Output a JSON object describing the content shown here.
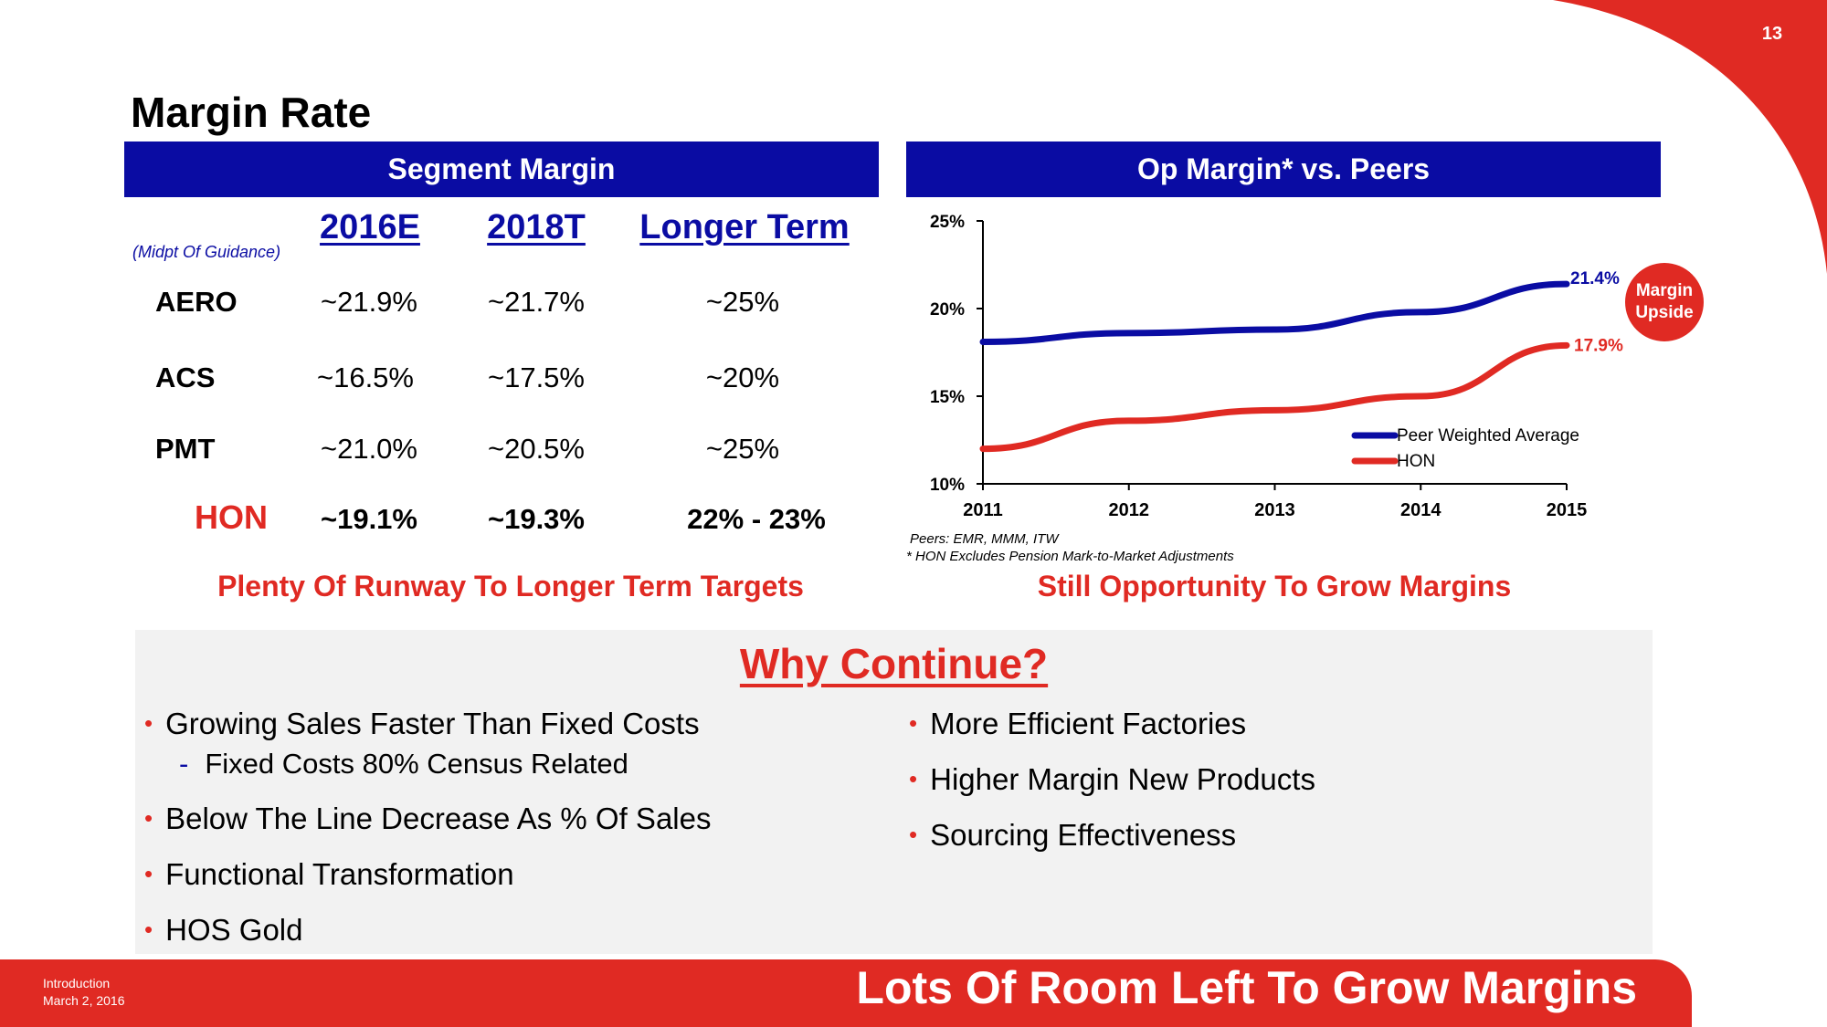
{
  "slide_number": "13",
  "title": "Margin Rate",
  "segment": {
    "header": "Segment Margin",
    "note": "(Midpt Of Guidance)",
    "columns": [
      "2016E",
      "2018T",
      "Longer Term"
    ],
    "rows": [
      {
        "label": "AERO",
        "values": [
          "~21.9%",
          "~21.7%",
          "~25%"
        ]
      },
      {
        "label": "ACS",
        "values": [
          "~16.5%",
          "~17.5%",
          "~20%"
        ]
      },
      {
        "label": "PMT",
        "values": [
          "~21.0%",
          "~20.5%",
          "~25%"
        ]
      },
      {
        "label": "HON",
        "values": [
          "~19.1%",
          "~19.3%",
          "22% - 23%"
        ]
      }
    ],
    "subtitle": "Plenty Of Runway To Longer Term Targets"
  },
  "peers": {
    "header": "Op Margin* vs. Peers",
    "footnote_peers": "Peers: EMR, MMM, ITW",
    "footnote_hon": "* HON Excludes Pension Mark-to-Market Adjustments",
    "subtitle": "Still Opportunity To Grow Margins",
    "badge_line1": "Margin",
    "badge_line2": "Upside"
  },
  "chart_data": {
    "type": "line",
    "title": "Op Margin* vs. Peers",
    "x": [
      "2011",
      "2012",
      "2013",
      "2014",
      "2015"
    ],
    "ylim": [
      10,
      25
    ],
    "yticks": [
      10,
      15,
      20,
      25
    ],
    "ytick_labels": [
      "10%",
      "15%",
      "20%",
      "25%"
    ],
    "series": [
      {
        "name": "Peer Weighted Average",
        "color": "#0a0ca3",
        "values": [
          18.1,
          18.6,
          18.8,
          19.8,
          21.4
        ],
        "end_label": "21.4%"
      },
      {
        "name": "HON",
        "color": "#e02a23",
        "values": [
          12.0,
          13.6,
          14.2,
          15.0,
          17.9
        ],
        "end_label": "17.9%"
      }
    ],
    "legend": "inside lower-right"
  },
  "why": {
    "heading": "Why Continue?",
    "left": [
      {
        "text": "Growing Sales Faster Than Fixed Costs",
        "sub": "Fixed Costs 80% Census Related"
      },
      {
        "text": "Below The Line Decrease As % Of Sales"
      },
      {
        "text": "Functional Transformation"
      },
      {
        "text": "HOS Gold"
      }
    ],
    "right": [
      "More Efficient Factories",
      "Higher Margin New Products",
      "Sourcing Effectiveness"
    ]
  },
  "footer": {
    "section": "Introduction",
    "date": "March 2, 2016",
    "headline": "Lots Of Room Left To Grow Margins"
  },
  "colors": {
    "brand_red": "#e02a23",
    "brand_blue": "#0a0ca3",
    "panel_grey": "#f2f2f2"
  }
}
